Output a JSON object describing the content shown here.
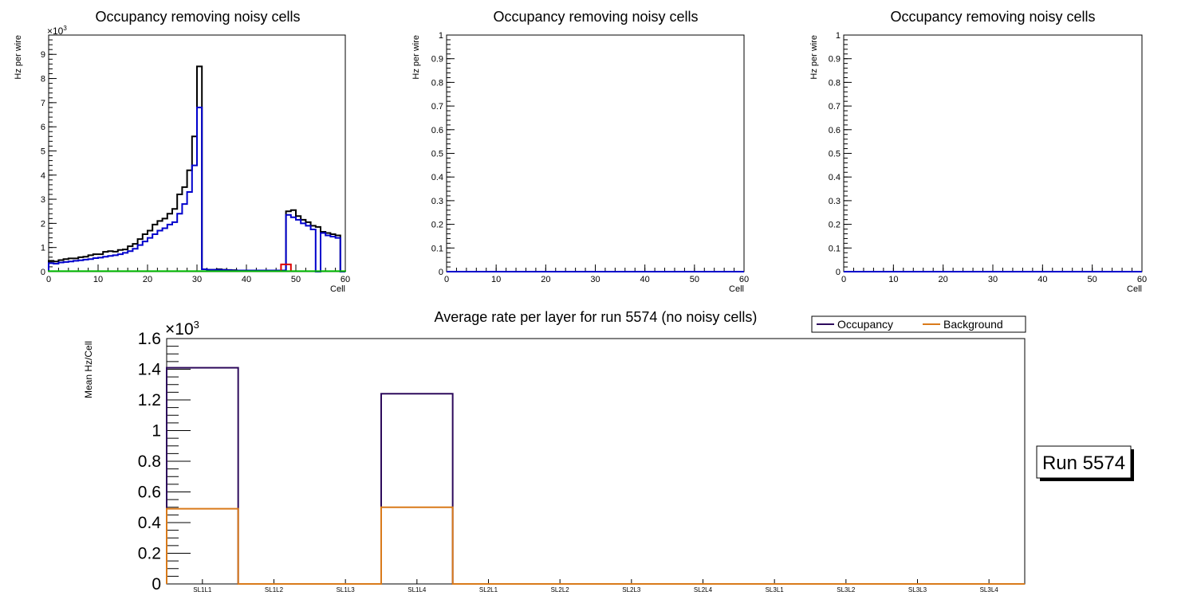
{
  "chart_data": [
    {
      "type": "line",
      "subtype": "step-histogram",
      "title": "Occupancy removing noisy cells",
      "xlabel": "Cell",
      "ylabel": "Hz per wire",
      "exponent_label": "×10",
      "exponent_power": "3",
      "xlim": [
        0,
        60
      ],
      "ylim": [
        0,
        9.8
      ],
      "xticks": [
        "0",
        "10",
        "20",
        "30",
        "40",
        "50",
        "60"
      ],
      "yticks": [
        "0",
        "1",
        "2",
        "3",
        "4",
        "5",
        "6",
        "7",
        "8",
        "9"
      ],
      "series": [
        {
          "name": "total",
          "color": "#000000",
          "edges": [
            0,
            1,
            2,
            3,
            4,
            5,
            6,
            7,
            8,
            9,
            10,
            11,
            12,
            13,
            14,
            15,
            16,
            17,
            18,
            19,
            20,
            21,
            22,
            23,
            24,
            25,
            26,
            27,
            28,
            29,
            30,
            31,
            32,
            33,
            34,
            35,
            36,
            37,
            38,
            39,
            40,
            41,
            42,
            43,
            44,
            45,
            46,
            47,
            48,
            49,
            50,
            51,
            52,
            53,
            54,
            55,
            56,
            57,
            58,
            59,
            60
          ],
          "values": [
            0.45,
            0.42,
            0.48,
            0.52,
            0.55,
            0.55,
            0.6,
            0.62,
            0.68,
            0.72,
            0.72,
            0.82,
            0.85,
            0.83,
            0.9,
            0.92,
            1.05,
            1.15,
            1.35,
            1.55,
            1.7,
            1.95,
            2.1,
            2.2,
            2.4,
            2.6,
            3.2,
            3.5,
            4.2,
            5.6,
            8.5,
            0.1,
            0.08,
            0.08,
            0.1,
            0.08,
            0.07,
            0.06,
            0.05,
            0.05,
            0.05,
            0.05,
            0.05,
            0.05,
            0.05,
            0.05,
            0.05,
            0.05,
            2.5,
            2.55,
            2.3,
            2.15,
            2.05,
            1.9,
            1.85,
            1.65,
            1.6,
            1.55,
            1.5,
            0
          ]
        },
        {
          "name": "noise-removed",
          "color": "#0000cc",
          "edges": [
            0,
            1,
            2,
            3,
            4,
            5,
            6,
            7,
            8,
            9,
            10,
            11,
            12,
            13,
            14,
            15,
            16,
            17,
            18,
            19,
            20,
            21,
            22,
            23,
            24,
            25,
            26,
            27,
            28,
            29,
            30,
            31,
            32,
            33,
            34,
            35,
            36,
            37,
            38,
            39,
            40,
            41,
            42,
            43,
            44,
            45,
            46,
            47,
            48,
            49,
            50,
            51,
            52,
            53,
            54,
            55,
            56,
            57,
            58,
            59,
            60
          ],
          "values": [
            0.35,
            0.33,
            0.38,
            0.4,
            0.42,
            0.45,
            0.47,
            0.5,
            0.52,
            0.56,
            0.58,
            0.62,
            0.65,
            0.68,
            0.72,
            0.78,
            0.85,
            0.95,
            1.1,
            1.25,
            1.4,
            1.55,
            1.7,
            1.8,
            1.95,
            2.05,
            2.4,
            2.8,
            3.3,
            4.4,
            6.8,
            0.1,
            0.08,
            0.08,
            0.08,
            0.07,
            0.06,
            0.05,
            0.05,
            0.05,
            0.05,
            0.05,
            0.05,
            0.05,
            0.05,
            0.05,
            0.05,
            0.05,
            2.35,
            2.25,
            2.15,
            2.0,
            1.9,
            1.75,
            0.0,
            1.6,
            1.5,
            1.45,
            1.4,
            0
          ]
        },
        {
          "name": "red",
          "color": "#dd0000",
          "edges": [
            47,
            48,
            49
          ],
          "values": [
            0.3,
            0.3
          ]
        },
        {
          "name": "green",
          "color": "#00bb00",
          "edges": [
            0,
            60
          ],
          "values": [
            0.02
          ]
        }
      ]
    },
    {
      "type": "line",
      "subtype": "step-histogram",
      "title": "Occupancy removing noisy cells",
      "xlabel": "Cell",
      "ylabel": "Hz per wire",
      "xlim": [
        0,
        60
      ],
      "ylim": [
        0,
        1
      ],
      "xticks": [
        "0",
        "10",
        "20",
        "30",
        "40",
        "50",
        "60"
      ],
      "yticks": [
        "0",
        "0.1",
        "0.2",
        "0.3",
        "0.4",
        "0.5",
        "0.6",
        "0.7",
        "0.8",
        "0.9",
        "1"
      ],
      "series": [
        {
          "name": "flat",
          "color": "#0000cc",
          "edges": [
            0,
            60
          ],
          "values": [
            0
          ]
        }
      ]
    },
    {
      "type": "line",
      "subtype": "step-histogram",
      "title": "Occupancy removing noisy cells",
      "xlabel": "Cell",
      "ylabel": "Hz per wire",
      "xlim": [
        0,
        60
      ],
      "ylim": [
        0,
        1
      ],
      "xticks": [
        "0",
        "10",
        "20",
        "30",
        "40",
        "50",
        "60"
      ],
      "yticks": [
        "0",
        "0.1",
        "0.2",
        "0.3",
        "0.4",
        "0.5",
        "0.6",
        "0.7",
        "0.8",
        "0.9",
        "1"
      ],
      "series": [
        {
          "name": "flat",
          "color": "#0000cc",
          "edges": [
            0,
            60
          ],
          "values": [
            0
          ]
        }
      ]
    },
    {
      "type": "bar",
      "subtype": "step-histogram",
      "title": "Average rate per layer for run 5574 (no noisy cells)",
      "xlabel": "",
      "ylabel": "Mean Hz/Cell",
      "exponent_label": "×10",
      "exponent_power": "3",
      "ylim": [
        0,
        1.6
      ],
      "yticks": [
        "0",
        "0.2",
        "0.4",
        "0.6",
        "0.8",
        "1",
        "1.2",
        "1.4",
        "1.6"
      ],
      "categories": [
        "SL1L1",
        "SL1L2",
        "SL1L3",
        "SL1L4",
        "SL2L1",
        "SL2L2",
        "SL2L3",
        "SL2L4",
        "SL3L1",
        "SL3L2",
        "SL3L3",
        "SL3L4"
      ],
      "series": [
        {
          "name": "Occupancy",
          "color": "#2d0a5c",
          "values": [
            1.41,
            0,
            0,
            1.24,
            0,
            0,
            0,
            0,
            0,
            0,
            0,
            0
          ]
        },
        {
          "name": "Background",
          "color": "#d97a1a",
          "values": [
            0.49,
            0,
            0,
            0.5,
            0,
            0,
            0,
            0,
            0,
            0,
            0,
            0
          ]
        }
      ],
      "legend": {
        "position": "top-right",
        "entries": [
          "Occupancy",
          "Background"
        ]
      },
      "annotation": "Run 5574"
    }
  ]
}
